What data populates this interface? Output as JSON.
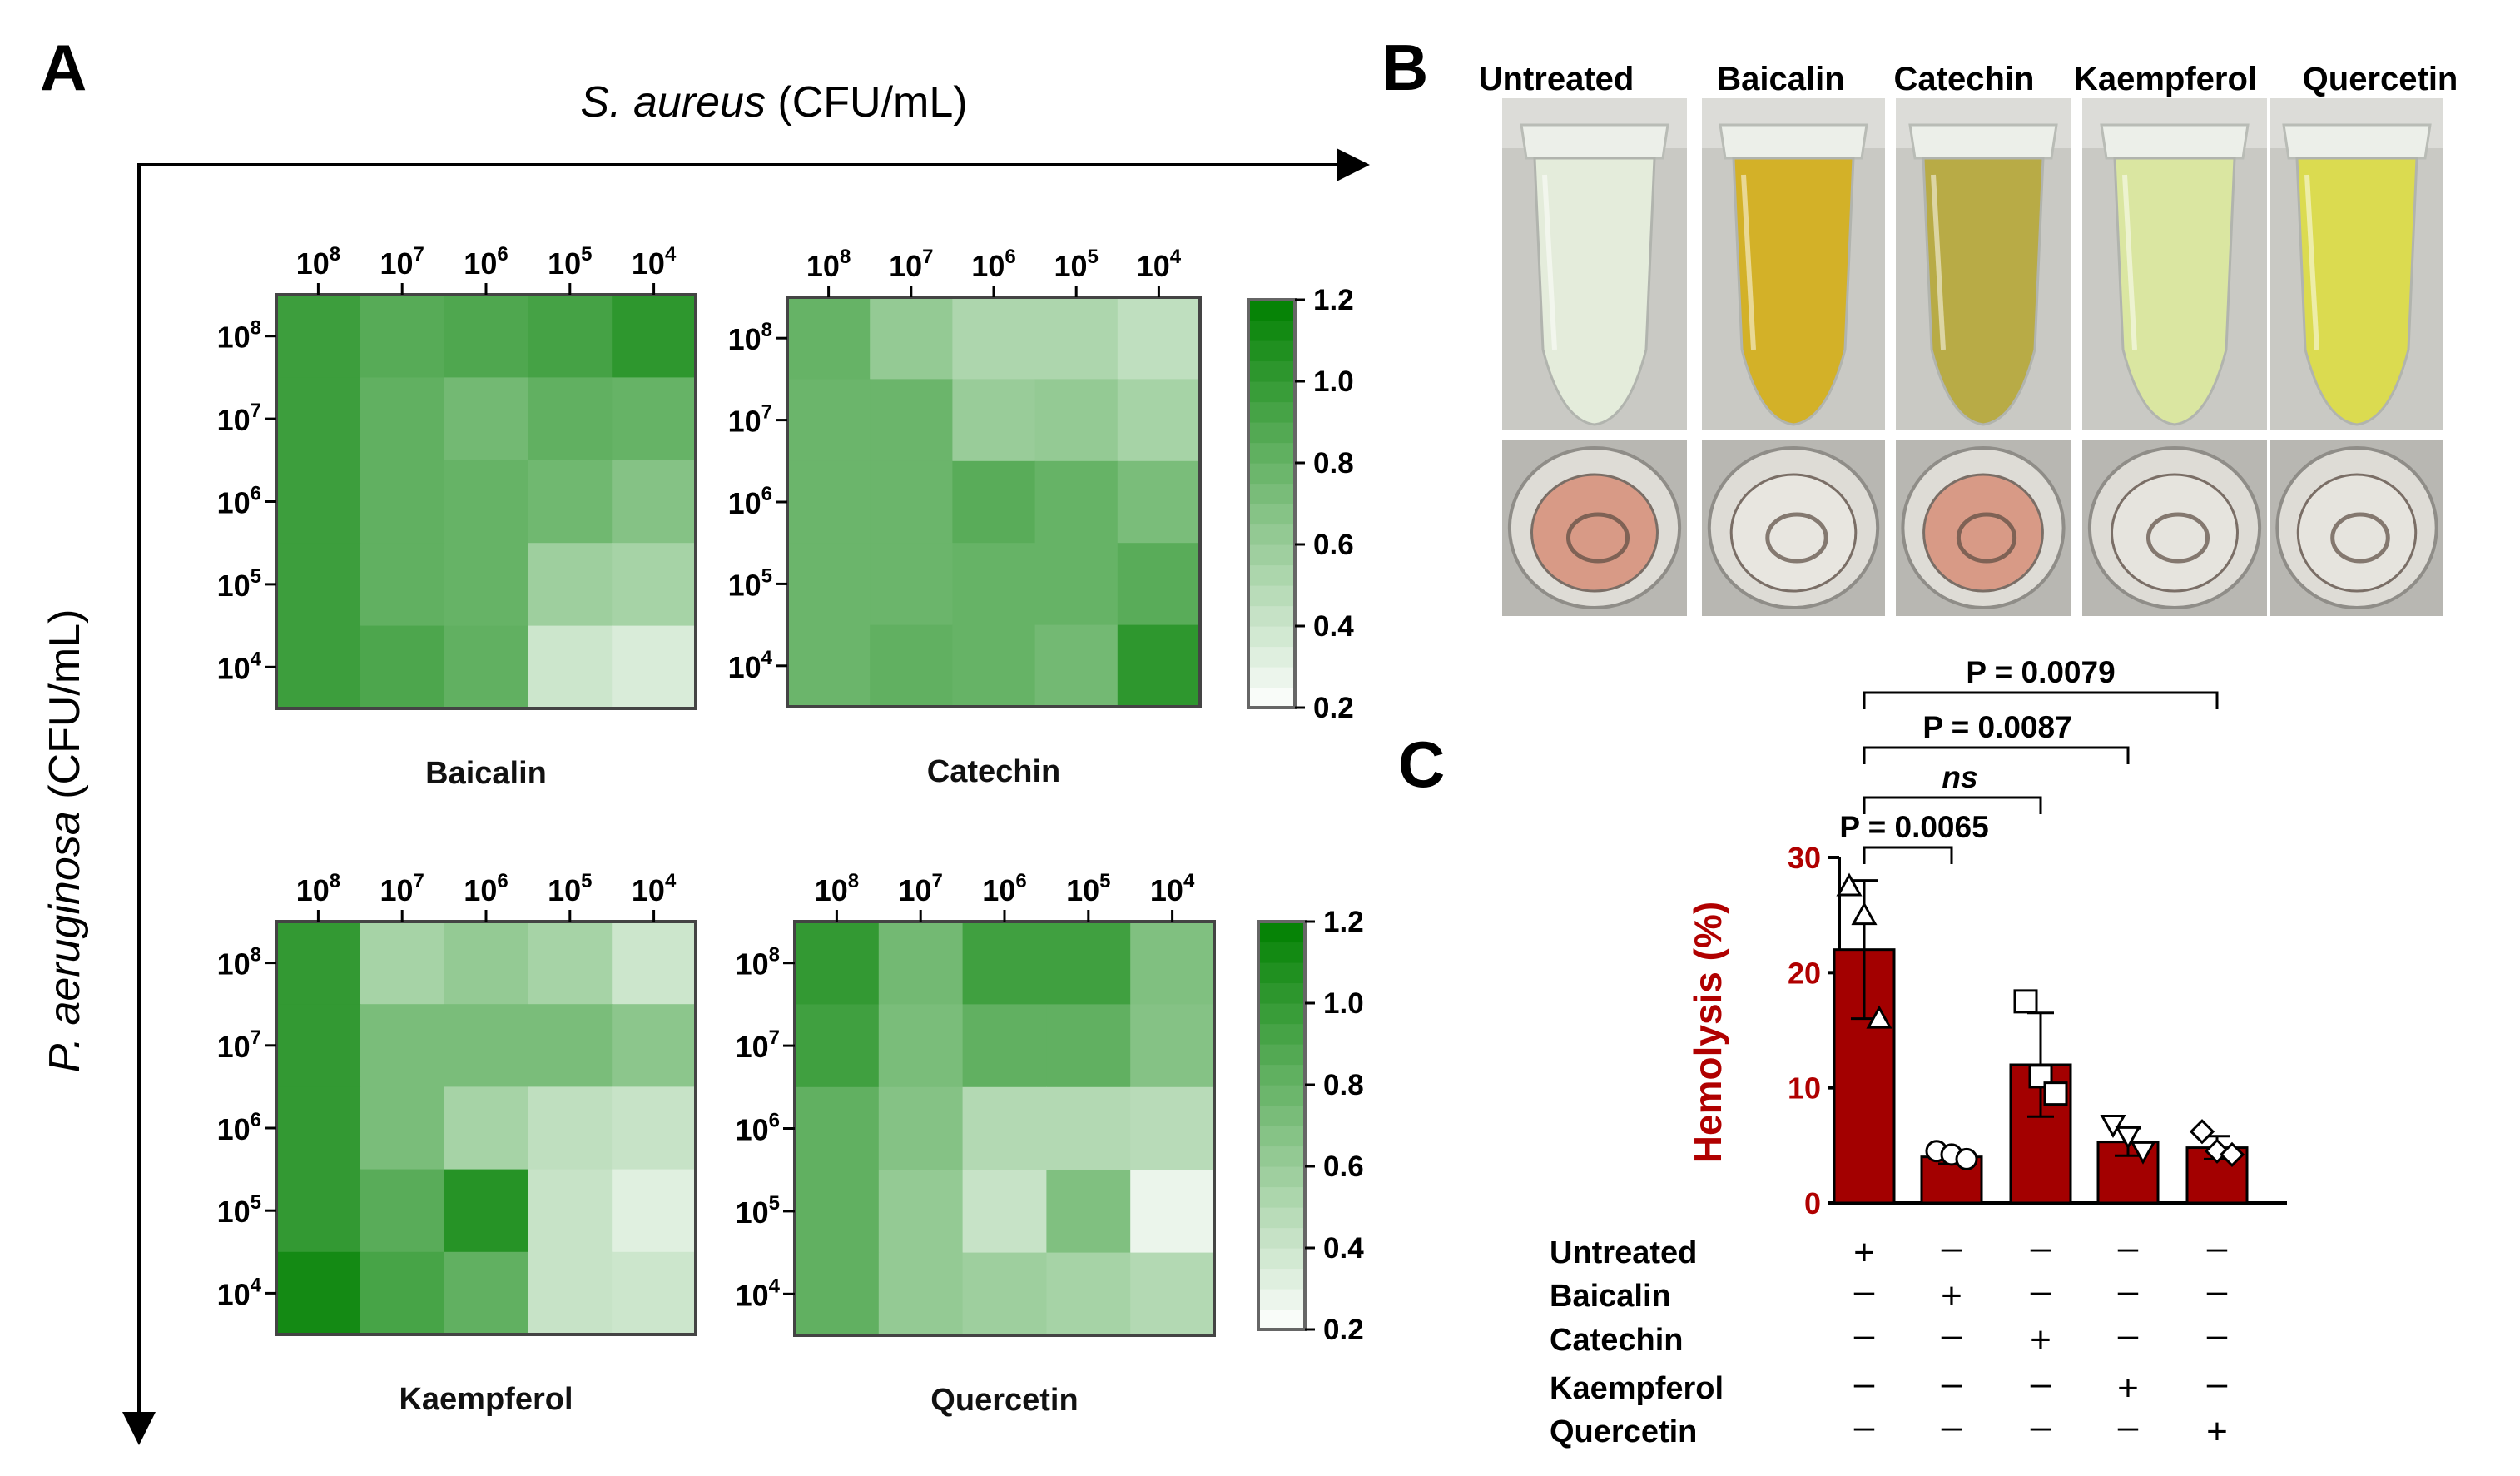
{
  "panel_labels": {
    "a": "A",
    "b": "B",
    "c": "C"
  },
  "panel_a": {
    "x_axis": {
      "italic": "S. aureus",
      "rest": " (CFU/mL)"
    },
    "y_axis": {
      "italic": "P. aeruginosa",
      "rest": " (CFU/mL)"
    },
    "tick_base": "10",
    "tick_exponents": [
      "8",
      "7",
      "6",
      "5",
      "4"
    ],
    "colorbar_ticks": [
      "1.2",
      "1.0",
      "0.8",
      "0.6",
      "0.4",
      "0.2"
    ],
    "color_scale": {
      "min": 0.2,
      "max": 1.2,
      "low_color": "#ffffff",
      "high_color": "#008000"
    }
  },
  "chart_data": [
    {
      "type": "heatmap",
      "title": "Baicalin",
      "x_categories": [
        "10^8",
        "10^7",
        "10^6",
        "10^5",
        "10^4"
      ],
      "y_categories": [
        "10^8",
        "10^7",
        "10^6",
        "10^5",
        "10^4"
      ],
      "values": [
        [
          0.96,
          0.86,
          0.89,
          0.93,
          1.02
        ],
        [
          0.96,
          0.82,
          0.75,
          0.82,
          0.8
        ],
        [
          0.96,
          0.82,
          0.8,
          0.76,
          0.68
        ],
        [
          0.96,
          0.82,
          0.8,
          0.58,
          0.55
        ],
        [
          0.96,
          0.9,
          0.82,
          0.4,
          0.35
        ]
      ],
      "zlim": [
        0.2,
        1.2
      ]
    },
    {
      "type": "heatmap",
      "title": "Catechin",
      "x_categories": [
        "10^8",
        "10^7",
        "10^6",
        "10^5",
        "10^4"
      ],
      "y_categories": [
        "10^8",
        "10^7",
        "10^6",
        "10^5",
        "10^4"
      ],
      "values": [
        [
          0.8,
          0.62,
          0.52,
          0.52,
          0.45
        ],
        [
          0.78,
          0.78,
          0.6,
          0.62,
          0.55
        ],
        [
          0.78,
          0.78,
          0.85,
          0.8,
          0.72
        ],
        [
          0.78,
          0.78,
          0.8,
          0.8,
          0.85
        ],
        [
          0.78,
          0.82,
          0.8,
          0.75,
          1.02
        ]
      ],
      "zlim": [
        0.2,
        1.2
      ]
    },
    {
      "type": "heatmap",
      "title": "Kaempferol",
      "x_categories": [
        "10^8",
        "10^7",
        "10^6",
        "10^5",
        "10^4"
      ],
      "y_categories": [
        "10^8",
        "10^7",
        "10^6",
        "10^5",
        "10^4"
      ],
      "values": [
        [
          1.0,
          0.55,
          0.62,
          0.55,
          0.4
        ],
        [
          1.0,
          0.72,
          0.72,
          0.72,
          0.65
        ],
        [
          1.0,
          0.72,
          0.55,
          0.45,
          0.42
        ],
        [
          1.0,
          0.85,
          1.05,
          0.42,
          0.32
        ],
        [
          1.12,
          0.92,
          0.82,
          0.42,
          0.4
        ]
      ],
      "zlim": [
        0.2,
        1.2
      ]
    },
    {
      "type": "heatmap",
      "title": "Quercetin",
      "x_categories": [
        "10^8",
        "10^7",
        "10^6",
        "10^5",
        "10^4"
      ],
      "y_categories": [
        "10^8",
        "10^7",
        "10^6",
        "10^5",
        "10^4"
      ],
      "values": [
        [
          1.0,
          0.75,
          0.95,
          0.95,
          0.7
        ],
        [
          0.95,
          0.72,
          0.82,
          0.82,
          0.68
        ],
        [
          0.82,
          0.68,
          0.5,
          0.5,
          0.48
        ],
        [
          0.82,
          0.62,
          0.42,
          0.7,
          0.28
        ],
        [
          0.82,
          0.62,
          0.58,
          0.55,
          0.5
        ]
      ],
      "zlim": [
        0.2,
        1.2
      ]
    },
    {
      "type": "bar",
      "title": "",
      "categories": [
        "Untreated",
        "Baicalin",
        "Catechin",
        "Kaempferol",
        "Quercetin"
      ],
      "values": [
        22,
        4,
        12,
        5.3,
        4.8
      ],
      "errors": [
        6,
        0.6,
        4.5,
        1.2,
        1.0
      ],
      "points": [
        [
          27.5,
          25,
          16
        ],
        [
          4.5,
          4.2,
          3.8
        ],
        [
          17.5,
          11,
          9.5
        ],
        [
          6.8,
          5.8,
          4.5
        ],
        [
          6.2,
          4.5,
          4.2
        ]
      ],
      "markers": [
        "triangle-up",
        "circle",
        "square",
        "triangle-down",
        "diamond"
      ],
      "ylabel": "Hemolysis (%)",
      "ylim": [
        0,
        30
      ],
      "yticks": [
        "0",
        "10",
        "20",
        "30"
      ],
      "bar_color": "#a30000"
    }
  ],
  "panel_b": {
    "tube_labels": [
      "Untreated",
      "Baicalin",
      "Catechin",
      "Kaempferol",
      "Quercetin"
    ],
    "tube_colors": [
      "#e6eedd",
      "#d4b020",
      "#b8aa40",
      "#dbe8a0",
      "#dcdc4a"
    ],
    "well_tints": [
      "#d89a86",
      "#e8e6e0",
      "#d89a86",
      "#e6e4de",
      "#e6e4de"
    ]
  },
  "panel_c": {
    "comparisons": [
      "P = 0.0065",
      "ns",
      "P = 0.0087",
      "P = 0.0079"
    ],
    "row_labels": [
      "Untreated",
      "Baicalin",
      "Catechin",
      "Kaempferol",
      "Quercetin"
    ],
    "plus": "+",
    "minus": "–"
  }
}
